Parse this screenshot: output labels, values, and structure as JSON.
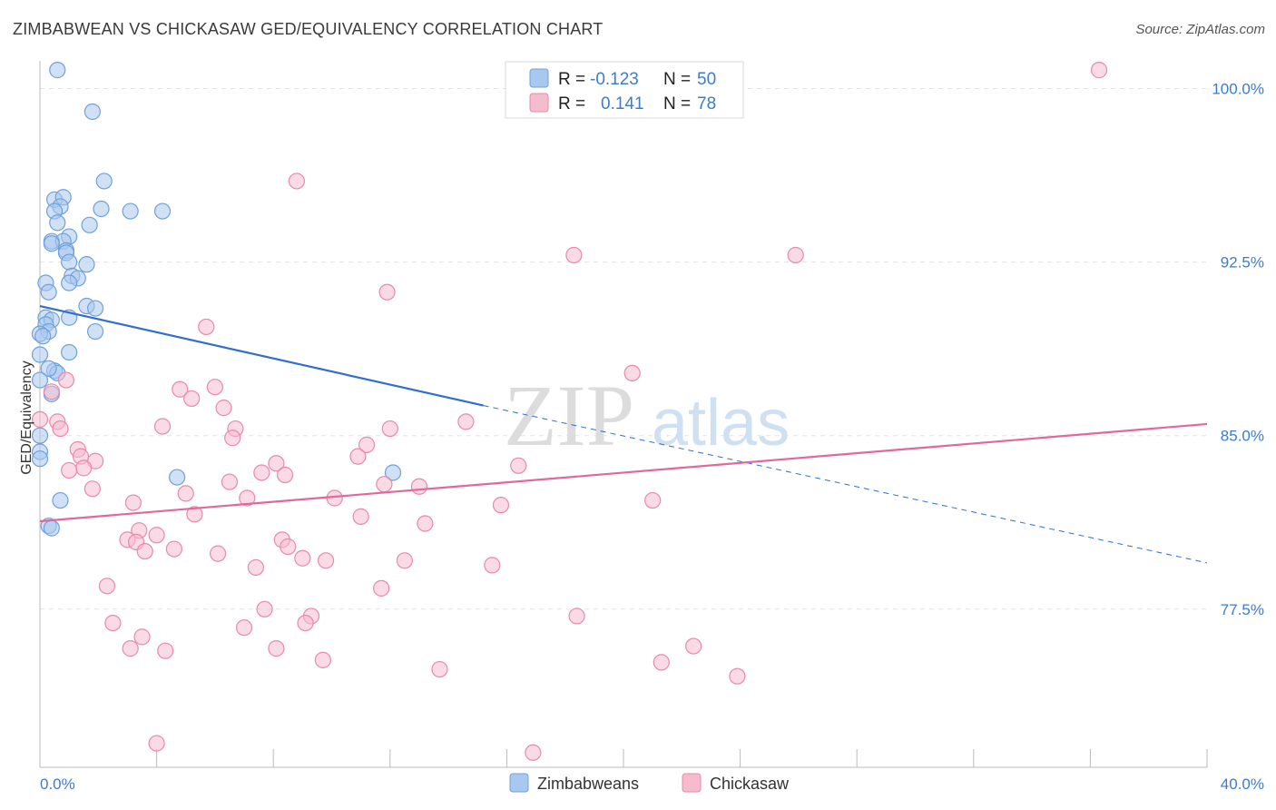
{
  "header": {
    "title": "ZIMBABWEAN VS CHICKASAW GED/EQUIVALENCY CORRELATION CHART",
    "source": "Source: ZipAtlas.com"
  },
  "watermark": {
    "part1": "ZIP",
    "part2": "atlas"
  },
  "colors": {
    "blue_fill": "#a9c8ef",
    "blue_stroke": "#6fa0dc",
    "blue_line": "#2f6fd1",
    "pink_fill": "#f5bccd",
    "pink_stroke": "#e88aa8",
    "pink_line": "#e0699a",
    "label": "#3d7cc9",
    "grid": "#e3e3e3"
  },
  "legend": {
    "rows": [
      {
        "r_label": "R =",
        "r_value": "-0.123",
        "n_label": "N =",
        "n_value": "50"
      },
      {
        "r_label": "R =",
        "r_value": "0.141",
        "n_label": "N =",
        "n_value": "78"
      }
    ]
  },
  "bottom_legend": {
    "series1": "Zimbabweans",
    "series2": "Chickasaw"
  },
  "chart_data": {
    "type": "scatter",
    "title": "ZIMBABWEAN VS CHICKASAW GED/EQUIVALENCY CORRELATION CHART",
    "xlabel": "",
    "ylabel": "GED/Equivalency",
    "xlim": [
      0,
      40
    ],
    "ylim": [
      70.5,
      101.5
    ],
    "x_tick_labels": [
      "0.0%",
      "40.0%"
    ],
    "y_ticks": [
      77.5,
      85.0,
      92.5,
      100.0
    ],
    "y_tick_labels": [
      "77.5%",
      "85.0%",
      "92.5%",
      "100.0%"
    ],
    "series": [
      {
        "name": "Zimbabweans",
        "R": -0.123,
        "N": 50,
        "trend": {
          "x0": 0,
          "y0": 90.6,
          "x1": 15.2,
          "y1": 86.3,
          "dash_to_x": 40,
          "dash_to_y": 79.5
        },
        "points": [
          [
            0.6,
            100.8
          ],
          [
            1.8,
            99.0
          ],
          [
            2.2,
            96.0
          ],
          [
            0.5,
            95.2
          ],
          [
            0.8,
            95.3
          ],
          [
            0.7,
            94.9
          ],
          [
            0.5,
            94.7
          ],
          [
            2.1,
            94.8
          ],
          [
            3.1,
            94.7
          ],
          [
            4.2,
            94.7
          ],
          [
            0.6,
            94.2
          ],
          [
            1.7,
            94.1
          ],
          [
            1.0,
            93.6
          ],
          [
            0.4,
            93.4
          ],
          [
            0.8,
            93.4
          ],
          [
            0.4,
            93.3
          ],
          [
            0.9,
            93.0
          ],
          [
            0.9,
            92.9
          ],
          [
            1.0,
            92.5
          ],
          [
            1.6,
            92.4
          ],
          [
            1.1,
            91.9
          ],
          [
            1.3,
            91.8
          ],
          [
            1.0,
            91.6
          ],
          [
            0.2,
            91.6
          ],
          [
            0.3,
            91.2
          ],
          [
            1.6,
            90.6
          ],
          [
            1.9,
            90.5
          ],
          [
            0.2,
            90.1
          ],
          [
            0.4,
            90.0
          ],
          [
            1.0,
            90.1
          ],
          [
            0.2,
            89.8
          ],
          [
            0.3,
            89.5
          ],
          [
            1.9,
            89.5
          ],
          [
            0.0,
            89.4
          ],
          [
            0.1,
            89.3
          ],
          [
            1.0,
            88.6
          ],
          [
            0.0,
            88.5
          ],
          [
            0.5,
            87.8
          ],
          [
            0.6,
            87.7
          ],
          [
            0.3,
            87.9
          ],
          [
            0.0,
            87.4
          ],
          [
            0.4,
            86.8
          ],
          [
            0.0,
            85.0
          ],
          [
            0.0,
            84.3
          ],
          [
            4.7,
            83.2
          ],
          [
            12.1,
            83.4
          ],
          [
            0.7,
            82.2
          ],
          [
            0.3,
            81.1
          ],
          [
            0.4,
            81.0
          ],
          [
            0.0,
            84.0
          ]
        ]
      },
      {
        "name": "Chickasaw",
        "R": 0.141,
        "N": 78,
        "trend": {
          "x0": 0,
          "y0": 81.3,
          "x1": 40,
          "y1": 85.5
        },
        "points": [
          [
            36.3,
            100.8
          ],
          [
            8.8,
            96.0
          ],
          [
            25.9,
            92.8
          ],
          [
            18.3,
            92.8
          ],
          [
            11.9,
            91.2
          ],
          [
            5.7,
            89.7
          ],
          [
            20.3,
            87.7
          ],
          [
            0.9,
            87.4
          ],
          [
            0.4,
            86.9
          ],
          [
            6.0,
            87.1
          ],
          [
            4.8,
            87.0
          ],
          [
            5.2,
            86.6
          ],
          [
            6.3,
            86.2
          ],
          [
            0.0,
            85.7
          ],
          [
            0.6,
            85.6
          ],
          [
            0.7,
            85.3
          ],
          [
            4.2,
            85.4
          ],
          [
            14.6,
            85.6
          ],
          [
            6.7,
            85.3
          ],
          [
            12.0,
            85.3
          ],
          [
            6.6,
            84.9
          ],
          [
            11.2,
            84.6
          ],
          [
            1.3,
            84.4
          ],
          [
            1.4,
            84.1
          ],
          [
            1.9,
            83.9
          ],
          [
            8.1,
            83.8
          ],
          [
            10.9,
            84.1
          ],
          [
            1.5,
            83.6
          ],
          [
            1.0,
            83.5
          ],
          [
            16.4,
            83.7
          ],
          [
            7.6,
            83.4
          ],
          [
            8.4,
            83.3
          ],
          [
            6.5,
            83.0
          ],
          [
            11.8,
            82.9
          ],
          [
            13.0,
            82.8
          ],
          [
            1.8,
            82.7
          ],
          [
            5.0,
            82.5
          ],
          [
            7.1,
            82.3
          ],
          [
            10.1,
            82.3
          ],
          [
            21.0,
            82.2
          ],
          [
            3.2,
            82.1
          ],
          [
            15.8,
            82.0
          ],
          [
            5.3,
            81.6
          ],
          [
            11.0,
            81.5
          ],
          [
            13.2,
            81.2
          ],
          [
            3.4,
            80.9
          ],
          [
            4.0,
            80.7
          ],
          [
            8.3,
            80.5
          ],
          [
            3.0,
            80.5
          ],
          [
            3.3,
            80.4
          ],
          [
            4.6,
            80.1
          ],
          [
            8.5,
            80.2
          ],
          [
            3.6,
            80.0
          ],
          [
            6.1,
            79.9
          ],
          [
            9.0,
            79.7
          ],
          [
            9.8,
            79.6
          ],
          [
            12.5,
            79.6
          ],
          [
            15.5,
            79.4
          ],
          [
            7.4,
            79.3
          ],
          [
            2.3,
            78.5
          ],
          [
            11.7,
            78.4
          ],
          [
            7.7,
            77.5
          ],
          [
            9.3,
            77.2
          ],
          [
            18.4,
            77.2
          ],
          [
            9.1,
            76.9
          ],
          [
            2.5,
            76.9
          ],
          [
            3.5,
            76.3
          ],
          [
            7.0,
            76.7
          ],
          [
            22.4,
            75.9
          ],
          [
            3.1,
            75.8
          ],
          [
            4.3,
            75.7
          ],
          [
            8.1,
            75.8
          ],
          [
            9.7,
            75.3
          ],
          [
            21.3,
            75.2
          ],
          [
            13.7,
            74.9
          ],
          [
            23.9,
            74.6
          ],
          [
            4.0,
            71.7
          ],
          [
            16.9,
            71.3
          ]
        ]
      }
    ]
  }
}
